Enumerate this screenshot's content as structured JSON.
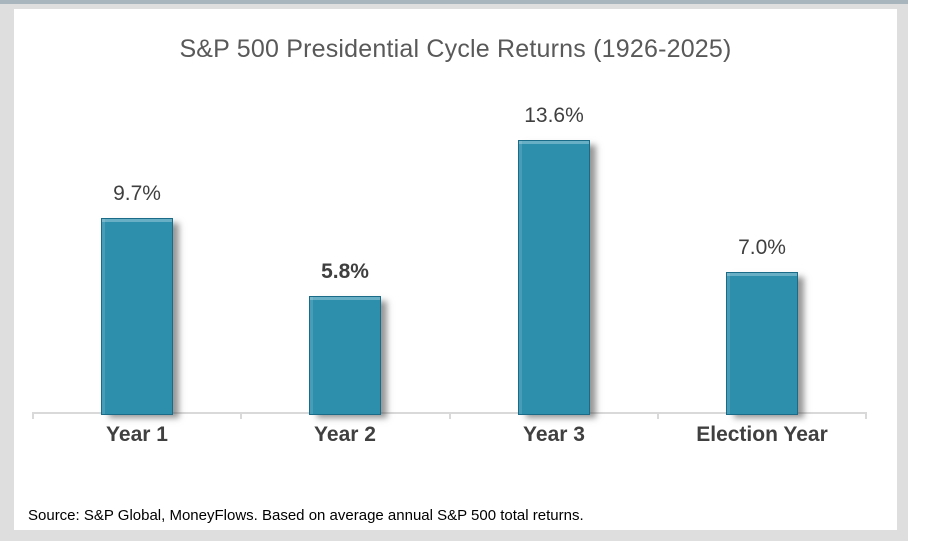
{
  "chart_data": {
    "type": "bar",
    "title": "S&P 500 Presidential Cycle Returns (1926-2025)",
    "categories": [
      "Year 1",
      "Year 2",
      "Year 3",
      "Election Year"
    ],
    "values": [
      9.7,
      5.8,
      13.6,
      7.0
    ],
    "value_labels": [
      "9.7%",
      "5.8%",
      "13.6%",
      "7.0%"
    ],
    "value_label_bold": [
      false,
      true,
      false,
      false
    ],
    "xlabel": "",
    "ylabel": "",
    "ylim": [
      0,
      14
    ],
    "grid": false,
    "legend": "none",
    "bar_color": "#2E8FAD",
    "bar_border_color": "#1A6B87",
    "axis_color": "#D9D9D9"
  },
  "source_note": "Source: S&P Global, MoneyFlows. Based on average annual S&P 500 total returns.",
  "colors": {
    "top_strip": "#A9B5BD",
    "frame": "#DEDEDE",
    "panel": "#FFFFFF",
    "title_text": "#595959",
    "value_text": "#3F3F3F",
    "category_text": "#404040",
    "source_text": "#000000"
  }
}
